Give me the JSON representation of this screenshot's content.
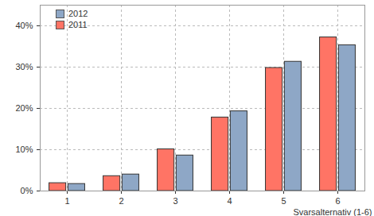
{
  "chart_data": {
    "type": "bar",
    "categories": [
      "1",
      "2",
      "3",
      "4",
      "5",
      "6"
    ],
    "series": [
      {
        "name": "2011",
        "color": "#ff7465",
        "values": [
          1.9,
          3.6,
          10.1,
          17.8,
          29.8,
          37.2
        ]
      },
      {
        "name": "2012",
        "color": "#8ea7c6",
        "values": [
          1.7,
          4.0,
          8.6,
          19.3,
          31.3,
          35.3
        ]
      }
    ],
    "x_label": "Svarsalternativ (1-6)",
    "ylim": [
      0,
      45
    ],
    "yticks": [
      {
        "value": 0,
        "label": "0%"
      },
      {
        "value": 10,
        "label": "10%"
      },
      {
        "value": 20,
        "label": "20%"
      },
      {
        "value": 30,
        "label": "30%"
      },
      {
        "value": 40,
        "label": "40%"
      }
    ],
    "grid": true,
    "legend": "top-left"
  }
}
